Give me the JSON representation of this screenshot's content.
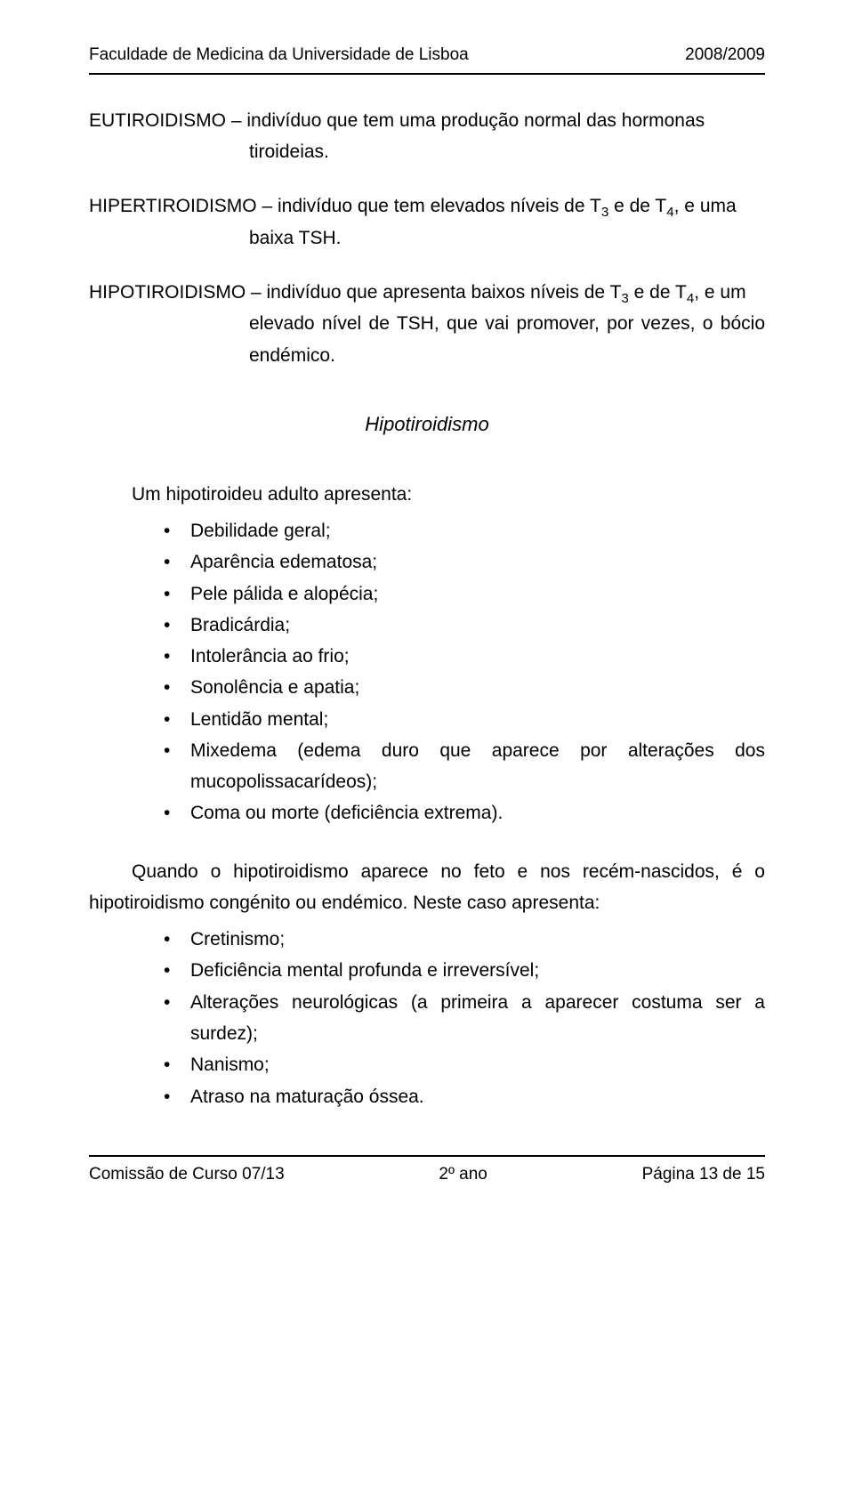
{
  "header": {
    "left": "Faculdade de Medicina da Universidade de Lisboa",
    "right": "2008/2009"
  },
  "definitions": {
    "eu": {
      "line1_pre": "EUTIROIDISMO – indivíduo que tem uma produção normal das hormonas",
      "line2": "tiroideias."
    },
    "hiper": {
      "line1a": "HIPERTIROIDISMO – indivíduo que tem elevados níveis de T",
      "line1b": " e de T",
      "line1c": ", e uma",
      "line2": "baixa TSH."
    },
    "hipo": {
      "line1a": "HIPOTIROIDISMO – indivíduo que apresenta baixos níveis de T",
      "line1b": " e de T",
      "line1c": ", e um",
      "line2": "elevado nível de TSH, que vai promover, por vezes, o bócio endémico."
    },
    "sub3": "3",
    "sub4": "4"
  },
  "section_title": "Hipotiroidismo",
  "para1": "Um hipotiroideu adulto apresenta:",
  "list1": [
    "Debilidade geral;",
    "Aparência edematosa;",
    "Pele pálida e alopécia;",
    "Bradicárdia;",
    "Intolerância ao frio;",
    "Sonolência e apatia;",
    "Lentidão mental;",
    "Mixedema (edema duro que aparece por alterações dos mucopolissacarídeos);",
    "Coma ou morte (deficiência extrema)."
  ],
  "para2": "Quando o hipotiroidismo aparece no feto e nos recém-nascidos, é o hipotiroidismo congénito ou endémico. Neste caso apresenta:",
  "list2": [
    "Cretinismo;",
    "Deficiência mental profunda e irreversível;",
    "Alterações neurológicas (a primeira a aparecer costuma ser a surdez);",
    "Nanismo;",
    "Atraso na maturação óssea."
  ],
  "footer": {
    "left": "Comissão de Curso 07/13",
    "center": "2º ano",
    "right": "Página 13 de 15"
  }
}
